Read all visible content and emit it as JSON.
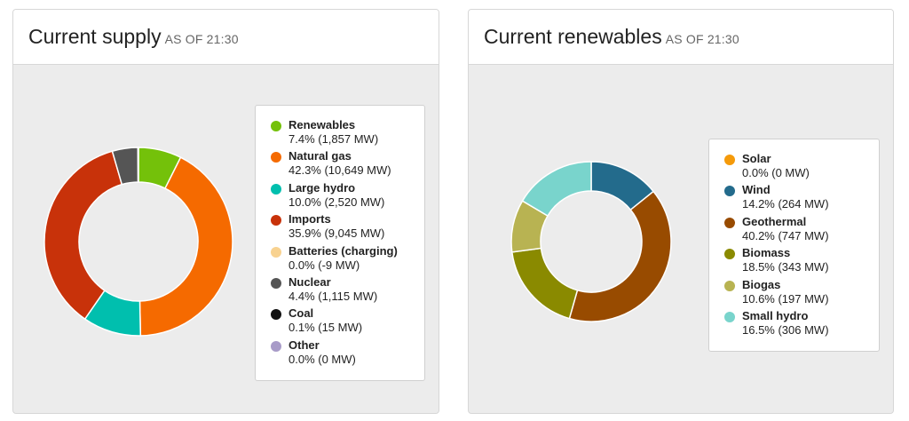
{
  "supply": {
    "title": "Current supply",
    "subtitle": "AS OF 21:30"
  },
  "renewables": {
    "title": "Current renewables",
    "subtitle": "AS OF 21:30"
  },
  "chart_data": [
    {
      "type": "pie",
      "title": "Current supply",
      "subtitle": "AS OF 21:30",
      "donut": true,
      "legend_position": "right",
      "slices": [
        {
          "name": "Renewables",
          "percent": 7.4,
          "mw": 1857,
          "value_label": "7.4% (1,857 MW)",
          "color": "#74c10a"
        },
        {
          "name": "Natural gas",
          "percent": 42.3,
          "mw": 10649,
          "value_label": "42.3% (10,649 MW)",
          "color": "#f56a00"
        },
        {
          "name": "Large hydro",
          "percent": 10.0,
          "mw": 2520,
          "value_label": "10.0% (2,520 MW)",
          "color": "#00bfae"
        },
        {
          "name": "Imports",
          "percent": 35.9,
          "mw": 9045,
          "value_label": "35.9% (9,045 MW)",
          "color": "#c8320a"
        },
        {
          "name": "Batteries (charging)",
          "percent": 0.0,
          "mw": -9,
          "value_label": "0.0% (-9 MW)",
          "color": "#f8d290"
        },
        {
          "name": "Nuclear",
          "percent": 4.4,
          "mw": 1115,
          "value_label": "4.4% (1,115 MW)",
          "color": "#555555"
        },
        {
          "name": "Coal",
          "percent": 0.1,
          "mw": 15,
          "value_label": "0.1% (15 MW)",
          "color": "#111111"
        },
        {
          "name": "Other",
          "percent": 0.0,
          "mw": 0,
          "value_label": "0.0% (0 MW)",
          "color": "#a89bc8"
        }
      ]
    },
    {
      "type": "pie",
      "title": "Current renewables",
      "subtitle": "AS OF 21:30",
      "donut": true,
      "legend_position": "right",
      "slices": [
        {
          "name": "Solar",
          "percent": 0.0,
          "mw": 0,
          "value_label": "0.0% (0 MW)",
          "color": "#f59a0a"
        },
        {
          "name": "Wind",
          "percent": 14.2,
          "mw": 264,
          "value_label": "14.2% (264 MW)",
          "color": "#236b8c"
        },
        {
          "name": "Geothermal",
          "percent": 40.2,
          "mw": 747,
          "value_label": "40.2% (747 MW)",
          "color": "#984b00"
        },
        {
          "name": "Biomass",
          "percent": 18.5,
          "mw": 343,
          "value_label": "18.5% (343 MW)",
          "color": "#8a8a00"
        },
        {
          "name": "Biogas",
          "percent": 10.6,
          "mw": 197,
          "value_label": "10.6% (197 MW)",
          "color": "#b8b352"
        },
        {
          "name": "Small hydro",
          "percent": 16.5,
          "mw": 306,
          "value_label": "16.5% (306 MW)",
          "color": "#79d4cc"
        }
      ]
    }
  ]
}
